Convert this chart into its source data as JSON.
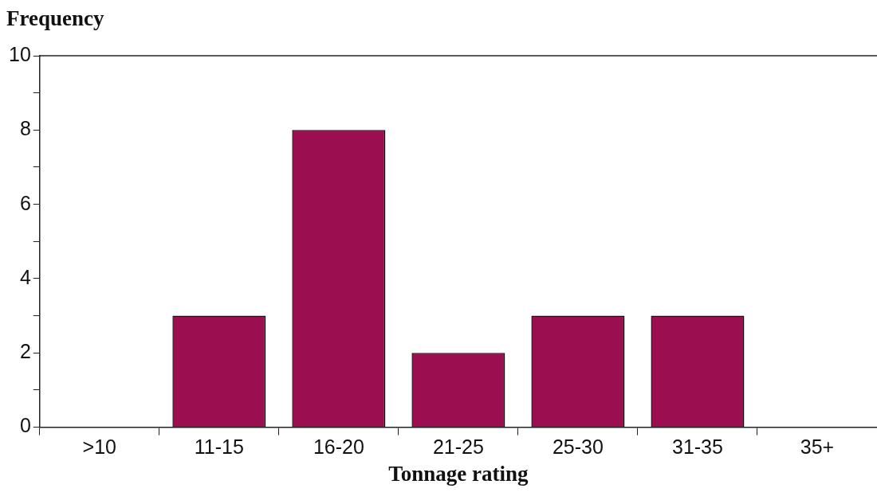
{
  "chart_data": {
    "type": "bar",
    "xlabel": "Tonnage rating",
    "ylabel": "Frequency",
    "categories": [
      ">10",
      "11-15",
      "16-20",
      "21-25",
      "25-30",
      "31-35",
      "35+"
    ],
    "values": [
      0,
      3,
      8,
      2,
      3,
      3,
      0
    ],
    "color": "#9b0e4f",
    "ylim": [
      0,
      10
    ],
    "yticks": [
      0,
      {
        "value": 1,
        "label": null
      },
      2,
      {
        "value": 3,
        "label": null
      },
      4,
      {
        "value": 5,
        "label": null
      },
      6,
      {
        "value": 7,
        "label": null
      },
      8,
      {
        "value": 9,
        "label": null
      },
      10
    ],
    "grid": false,
    "legend": false
  }
}
